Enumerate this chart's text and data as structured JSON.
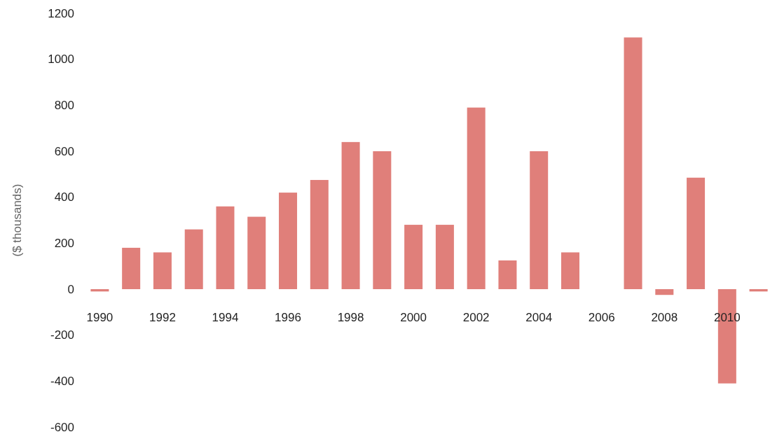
{
  "chart_data": {
    "type": "bar",
    "ylabel": "($ thousands)",
    "categories": [
      "1990",
      null,
      "1992",
      null,
      "1994",
      null,
      "1996",
      null,
      "1998",
      null,
      "2000",
      null,
      "2002",
      null,
      "2004",
      null,
      "2006",
      null,
      "2008",
      null,
      "2010",
      null
    ],
    "values": [
      -10,
      180,
      160,
      260,
      360,
      315,
      420,
      475,
      640,
      600,
      280,
      280,
      790,
      125,
      600,
      160,
      0,
      1095,
      -25,
      485,
      -410,
      -10
    ],
    "color": "#e07f7a",
    "ylim": [
      -600,
      1200
    ],
    "yticks": [
      -600,
      -400,
      -200,
      0,
      200,
      400,
      600,
      800,
      1000,
      1200
    ]
  }
}
